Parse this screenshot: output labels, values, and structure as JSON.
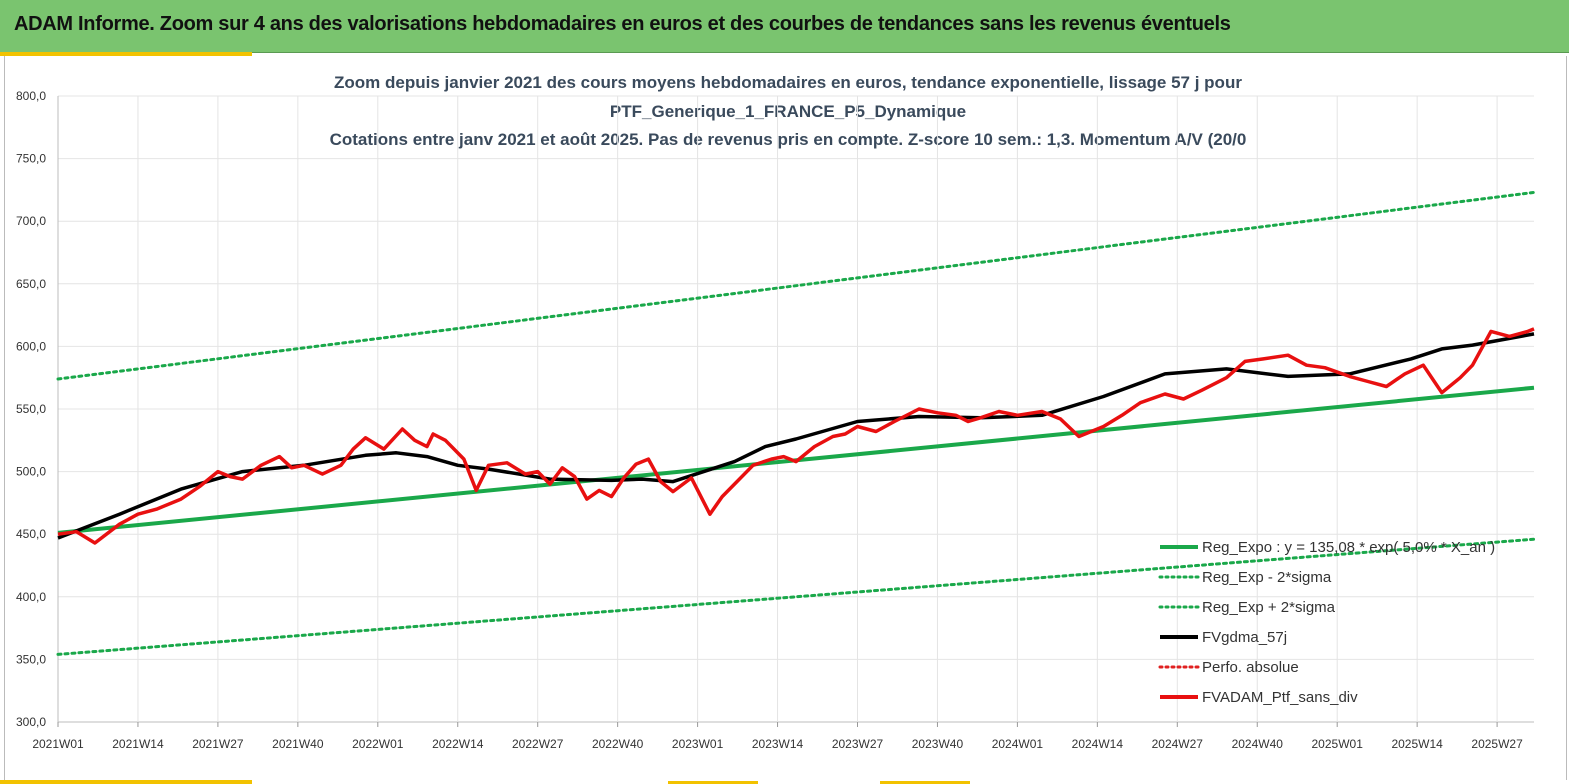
{
  "header": {
    "title": "ADAM Informe. Zoom sur 4 ans des valorisations hebdomadaires en euros et des courbes de tendances sans les revenus éventuels"
  },
  "colors": {
    "header_bg": "#7ac46f",
    "accent": "#f2c200",
    "reg_expo": "#1aa84a",
    "band": "#1aa84a",
    "gdma": "#000000",
    "perfo": "#e02020",
    "fvadam": "#e81010"
  },
  "chart_data": {
    "type": "line",
    "title_lines": [
      "Zoom depuis janvier 2021 des cours moyens hebdomadaires  en euros, tendance exponentielle, lissage 57 j pour",
      "PTF_Generique_1_FRANCE_P5_Dynamique",
      "Cotations entre janv 2021 et août 2025. Pas de revenus pris en compte. Z-score 10 sem.: 1,3. Momentum A/V (20/0"
    ],
    "ylim": [
      300,
      800
    ],
    "y_ticks": [
      "300,0",
      "350,0",
      "400,0",
      "450,0",
      "500,0",
      "550,0",
      "600,0",
      "650,0",
      "700,0",
      "750,0",
      "800,0"
    ],
    "x_ticks": [
      "2021W01",
      "2021W14",
      "2021W27",
      "2021W40",
      "2022W01",
      "2022W14",
      "2022W27",
      "2022W40",
      "2023W01",
      "2023W14",
      "2023W27",
      "2023W40",
      "2024W01",
      "2024W14",
      "2024W27",
      "2024W40",
      "2025W01",
      "2025W14",
      "2025W27"
    ],
    "week_count": 240,
    "grid": true,
    "legend_position": "bottom-right",
    "legend": [
      {
        "name": "Reg_Expo : y = 135,08 * exp( 5,0% * X_an )",
        "style": "solid",
        "color": "#1aa84a"
      },
      {
        "name": "Reg_Exp - 2*sigma",
        "style": "dotted",
        "color": "#1aa84a"
      },
      {
        "name": "Reg_Exp + 2*sigma",
        "style": "dotted",
        "color": "#1aa84a"
      },
      {
        "name": "FVgdma_57j",
        "style": "solid",
        "color": "#000000"
      },
      {
        "name": "Perfo. absolue",
        "style": "dotted",
        "color": "#e02020"
      },
      {
        "name": "FVADAM_Ptf_sans_div",
        "style": "solid",
        "color": "#e81010"
      }
    ],
    "series": [
      {
        "name": "Reg_Expo",
        "x": [
          0,
          240
        ],
        "values": [
          451,
          567
        ]
      },
      {
        "name": "Reg_Exp + 2*sigma",
        "x": [
          0,
          240
        ],
        "values": [
          574,
          723
        ]
      },
      {
        "name": "Reg_Exp - 2*sigma",
        "x": [
          0,
          240
        ],
        "values": [
          354,
          446
        ]
      },
      {
        "name": "FVgdma_57j",
        "x": [
          0,
          10,
          20,
          30,
          40,
          50,
          55,
          60,
          65,
          70,
          80,
          90,
          95,
          100,
          110,
          115,
          120,
          130,
          140,
          150,
          160,
          170,
          180,
          190,
          200,
          210,
          220,
          225,
          230,
          240
        ],
        "values": [
          447,
          466,
          486,
          500,
          505,
          513,
          515,
          512,
          505,
          502,
          494,
          493,
          494,
          492,
          508,
          520,
          526,
          540,
          544,
          543,
          545,
          560,
          578,
          582,
          576,
          578,
          590,
          598,
          601,
          610
        ]
      },
      {
        "name": "FVADAM_Ptf_sans_div",
        "x": [
          0,
          3,
          6,
          10,
          13,
          16,
          20,
          23,
          26,
          28,
          30,
          33,
          36,
          38,
          40,
          43,
          46,
          48,
          50,
          53,
          56,
          58,
          60,
          61,
          63,
          66,
          68,
          70,
          73,
          76,
          78,
          80,
          82,
          84,
          86,
          88,
          90,
          92,
          94,
          96,
          98,
          100,
          103,
          106,
          108,
          110,
          113,
          116,
          118,
          120,
          123,
          126,
          128,
          130,
          133,
          136,
          140,
          143,
          146,
          148,
          150,
          153,
          156,
          160,
          163,
          166,
          170,
          173,
          176,
          180,
          183,
          186,
          190,
          193,
          196,
          200,
          203,
          206,
          210,
          213,
          216,
          219,
          222,
          225,
          228,
          230,
          233,
          236,
          239,
          240
        ],
        "values": [
          450,
          452,
          443,
          458,
          466,
          470,
          478,
          488,
          500,
          496,
          494,
          505,
          512,
          503,
          505,
          498,
          505,
          518,
          527,
          518,
          534,
          525,
          520,
          530,
          525,
          510,
          485,
          505,
          507,
          498,
          500,
          490,
          503,
          496,
          478,
          485,
          480,
          495,
          506,
          510,
          492,
          484,
          495,
          466,
          480,
          490,
          505,
          510,
          512,
          508,
          520,
          528,
          530,
          536,
          532,
          540,
          550,
          547,
          545,
          540,
          543,
          548,
          545,
          548,
          542,
          528,
          536,
          545,
          555,
          562,
          558,
          565,
          575,
          588,
          590,
          593,
          585,
          583,
          576,
          572,
          568,
          578,
          585,
          563,
          575,
          585,
          612,
          608,
          612,
          614
        ]
      }
    ]
  }
}
